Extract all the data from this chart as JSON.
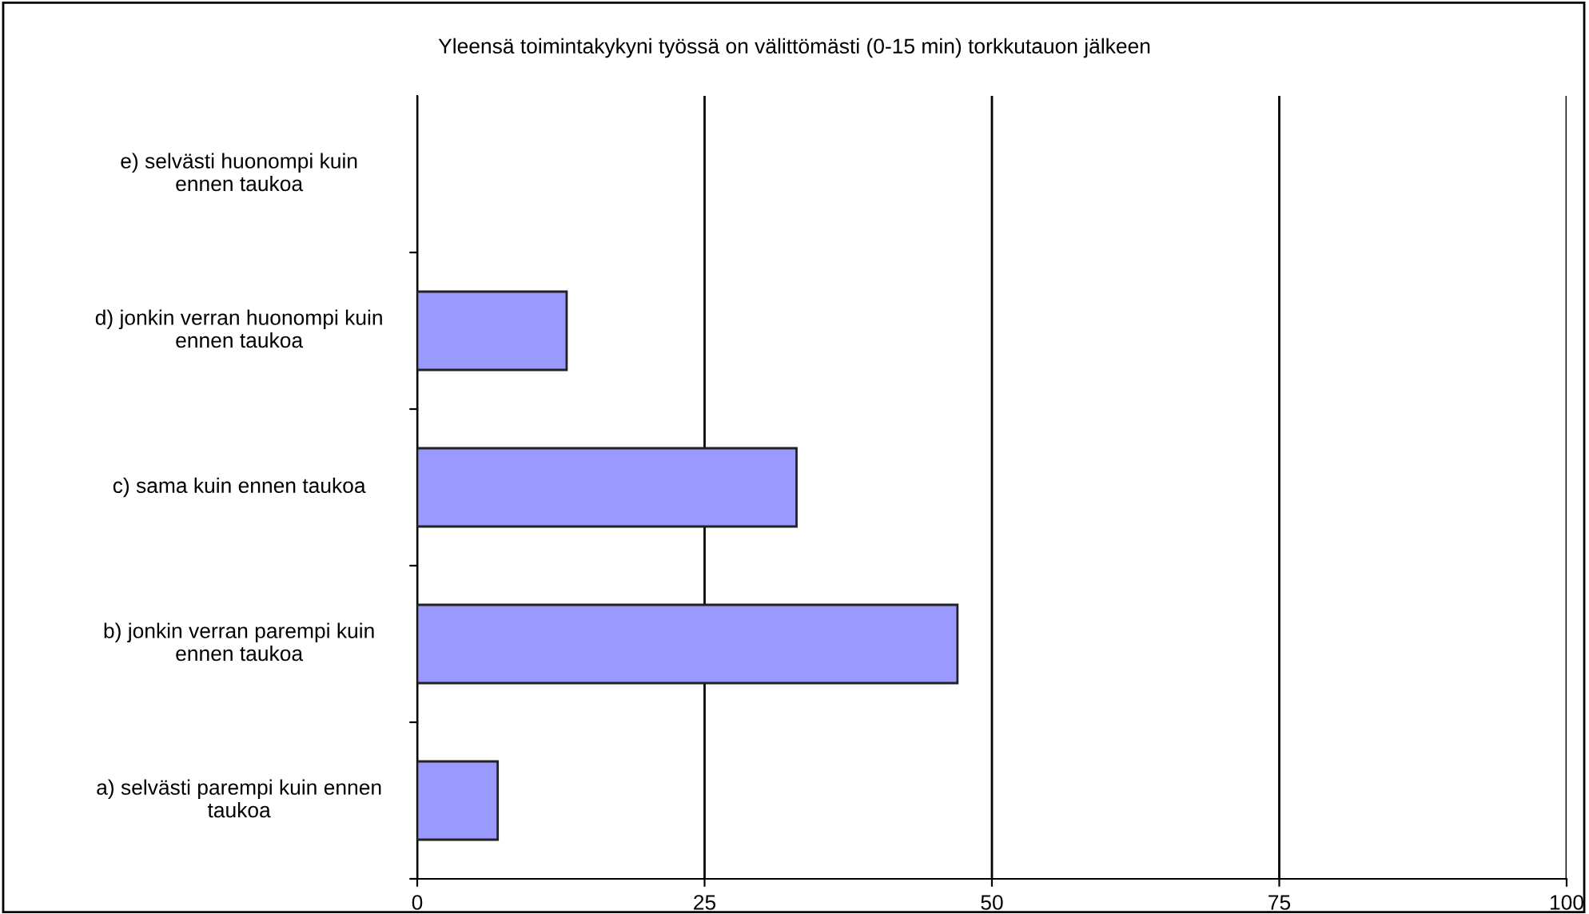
{
  "chart_data": {
    "type": "bar",
    "orientation": "horizontal",
    "title": "Yleensä toimintakykyni työssä on välittömästi (0-15 min) torkkutauon jälkeen",
    "categories": [
      "e) selvästi huonompi kuin ennen taukoa",
      "d) jonkin verran huonompi kuin ennen taukoa",
      "c) sama kuin ennen taukoa",
      "b) jonkin verran parempi kuin ennen taukoa",
      "a) selvästi parempi kuin ennen taukoa"
    ],
    "values": [
      0,
      13,
      33,
      47,
      7
    ],
    "color": "#9999ff",
    "xlim": [
      0,
      100
    ],
    "xticks": [
      0,
      25,
      50,
      75,
      100
    ],
    "grid": "x"
  }
}
